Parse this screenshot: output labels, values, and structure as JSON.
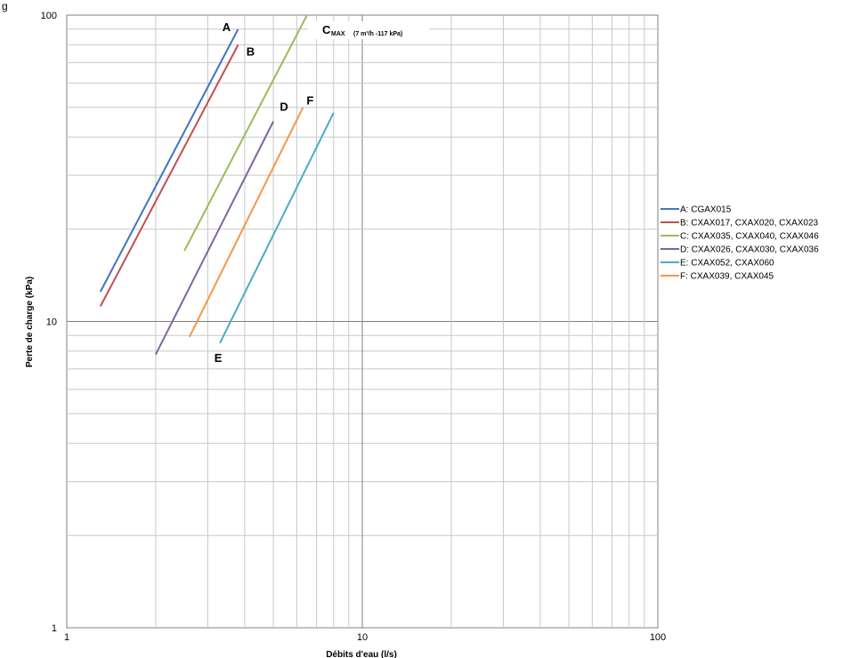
{
  "chart_data": {
    "type": "line",
    "xscale": "log",
    "yscale": "log",
    "xlim": [
      1,
      100
    ],
    "ylim": [
      1,
      100
    ],
    "xticks": [
      "1",
      "10",
      "100"
    ],
    "yticks": [
      "1",
      "10",
      "100"
    ],
    "xlabel": "Débits d'eau (l/s)",
    "ylabel": "Perte de charge (kPa)",
    "grid": true,
    "legend_position": "right",
    "series": [
      {
        "name": "A: CGAX015",
        "label": "A",
        "color": "#4472c4",
        "x": [
          1.3,
          3.8
        ],
        "y": [
          12.5,
          90
        ]
      },
      {
        "name": "B: CXAX017, CXAX020, CXAX023",
        "label": "B",
        "color": "#c0504d",
        "x": [
          1.3,
          3.8
        ],
        "y": [
          11.2,
          80
        ]
      },
      {
        "name": "C: CXAX035, CXAX040, CXAX046",
        "label": "C",
        "color": "#9bbb59",
        "x": [
          2.5,
          6.5
        ],
        "y": [
          17,
          100
        ]
      },
      {
        "name": "D: CXAX026, CXAX030, CXAX036",
        "label": "D",
        "color": "#8064a2",
        "x": [
          2.0,
          5.0
        ],
        "y": [
          7.8,
          45
        ]
      },
      {
        "name": "E: CXAX052, CXAX060",
        "label": "E",
        "color": "#4bacc6",
        "x": [
          3.3,
          8.0
        ],
        "y": [
          8.5,
          48
        ]
      },
      {
        "name": "F: CXAX039, CXAX045",
        "label": "F",
        "color": "#f79646",
        "x": [
          2.6,
          6.3
        ],
        "y": [
          8.9,
          50
        ]
      }
    ],
    "annotation": {
      "label": "C",
      "subscript": "MAX",
      "text": "(7 m³/h -117 kPa)"
    }
  },
  "header": {
    "text": "g"
  }
}
